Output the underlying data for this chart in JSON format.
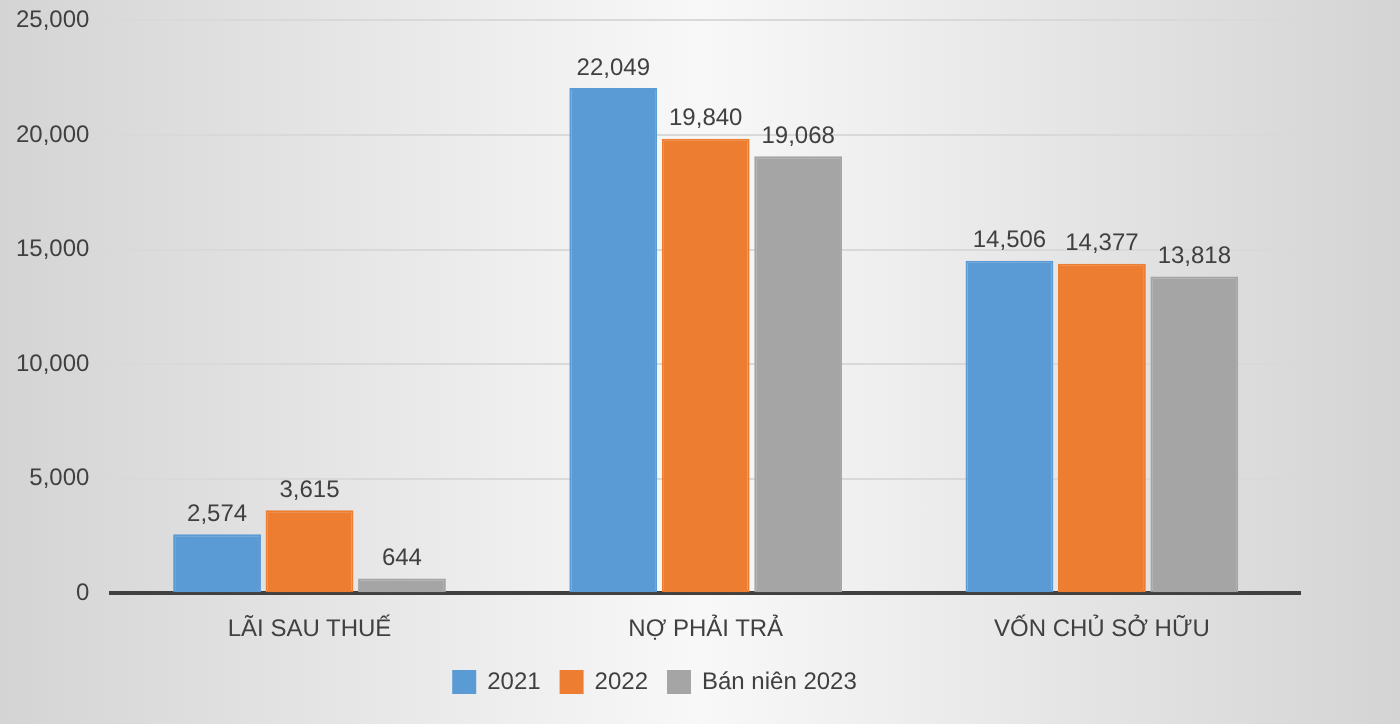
{
  "chart_data": {
    "type": "bar",
    "categories": [
      "LÃI SAU THUẾ",
      "NỢ PHẢI TRẢ",
      "VỐN CHỦ SỞ HỮU"
    ],
    "series": [
      {
        "name": "2021",
        "color": "#5b9bd5",
        "values": [
          2574,
          22049,
          14506
        ],
        "value_labels": [
          "2,574",
          "22,049",
          "14,506"
        ]
      },
      {
        "name": "2022",
        "color": "#ed7d31",
        "values": [
          3615,
          19840,
          14377
        ],
        "value_labels": [
          "3,615",
          "19,840",
          "14,377"
        ]
      },
      {
        "name": "Bán niên 2023",
        "color": "#a5a5a5",
        "values": [
          644,
          19068,
          13818
        ],
        "value_labels": [
          "644",
          "19,068",
          "13,818"
        ]
      }
    ],
    "ylim": [
      0,
      25000
    ],
    "yticks": [
      {
        "value": 0,
        "label": "0"
      },
      {
        "value": 5000,
        "label": "5,000"
      },
      {
        "value": 10000,
        "label": "10,000"
      },
      {
        "value": 15000,
        "label": "15,000"
      },
      {
        "value": 20000,
        "label": "20,000"
      },
      {
        "value": 25000,
        "label": "25,000"
      }
    ],
    "grid": "y",
    "legend": "bottom"
  }
}
